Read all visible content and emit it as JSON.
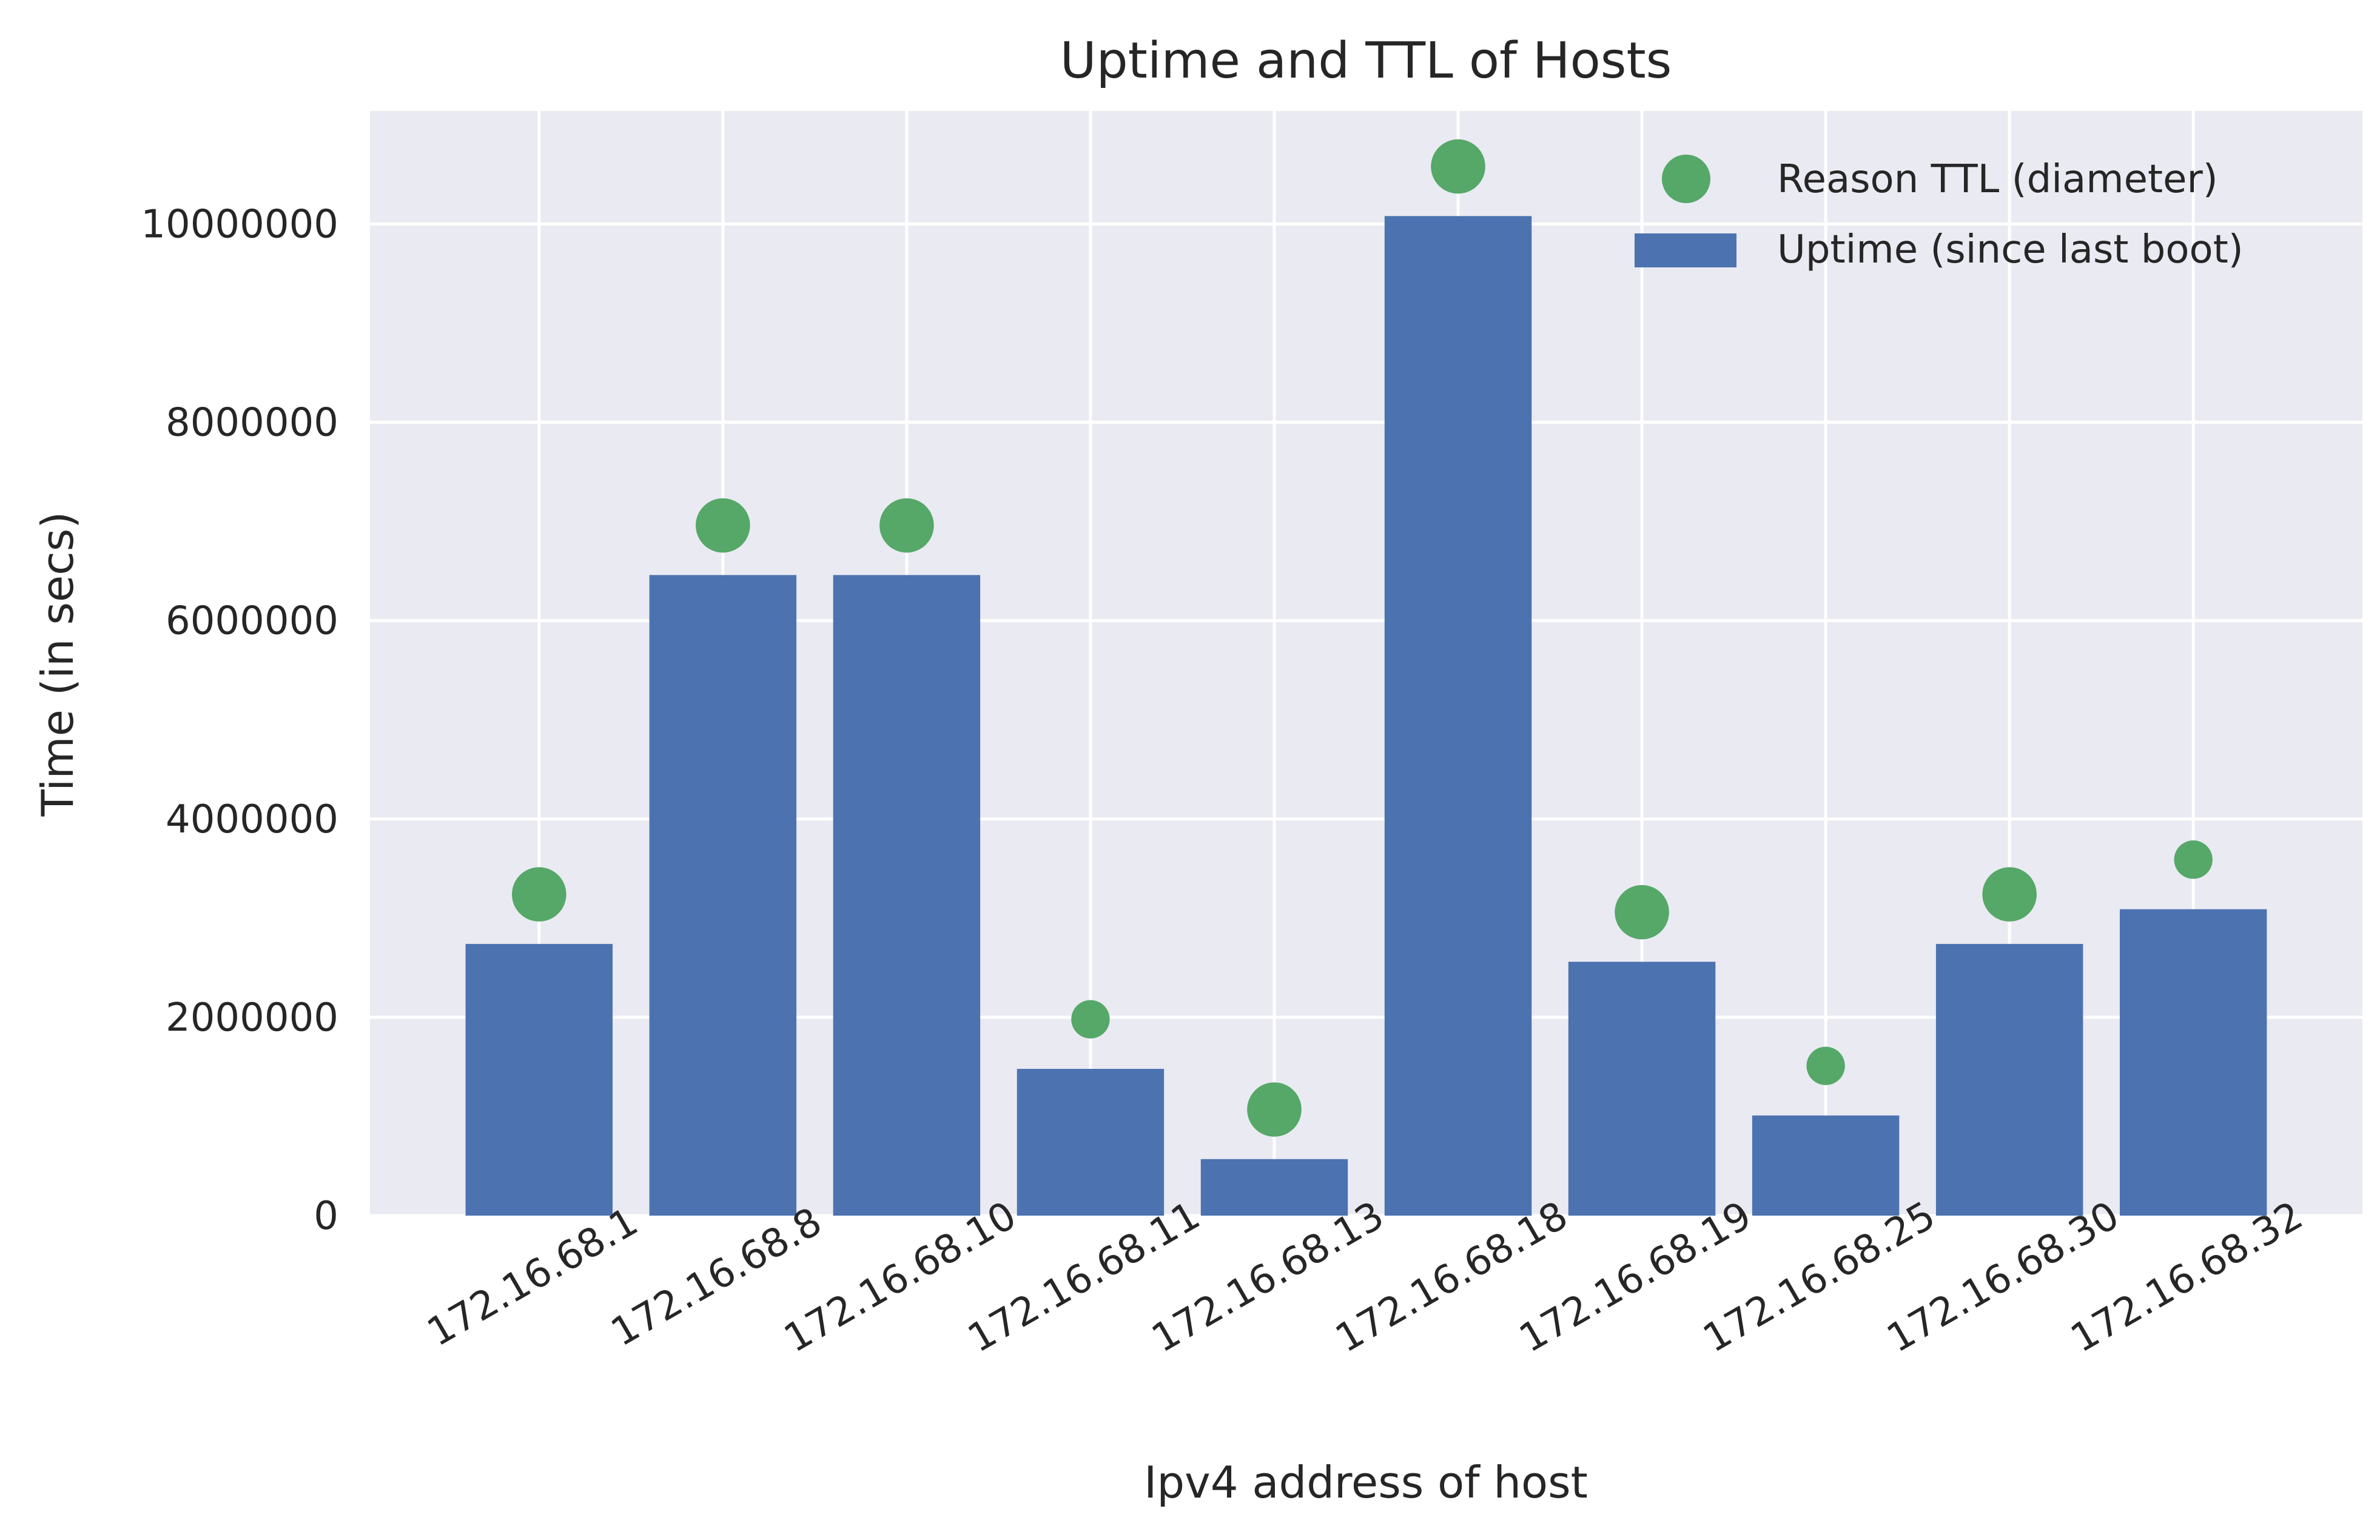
{
  "chart_data": {
    "type": "bar",
    "title": "Uptime and TTL of Hosts",
    "xlabel": "Ipv4 address of host",
    "ylabel": "Time (in secs)",
    "categories": [
      "172.16.68.1",
      "172.16.68.8",
      "172.16.68.10",
      "172.16.68.11",
      "172.16.68.13",
      "172.16.68.18",
      "172.16.68.19",
      "172.16.68.25",
      "172.16.68.30",
      "172.16.68.32"
    ],
    "series": [
      {
        "name": "Uptime (since last boot)",
        "kind": "bar",
        "color": "#4C72B0",
        "values": [
          2740000,
          6460000,
          6460000,
          1480000,
          570000,
          10080000,
          2560000,
          1010000,
          2740000,
          3090000
        ]
      },
      {
        "name": "Reason TTL (diameter)",
        "kind": "scatter",
        "color": "#55A868",
        "values": [
          3240000,
          6960000,
          6960000,
          1980000,
          1070000,
          10580000,
          3060000,
          1510000,
          3240000,
          3590000
        ],
        "sizes": [
          64,
          64,
          64,
          32,
          64,
          64,
          64,
          32,
          64,
          32
        ]
      }
    ],
    "yticks": [
      0,
      2000000,
      4000000,
      6000000,
      8000000,
      10000000
    ],
    "ylim": [
      0,
      11140000
    ],
    "grid": true,
    "legend": "top-right",
    "background": "#EAEAF2"
  }
}
